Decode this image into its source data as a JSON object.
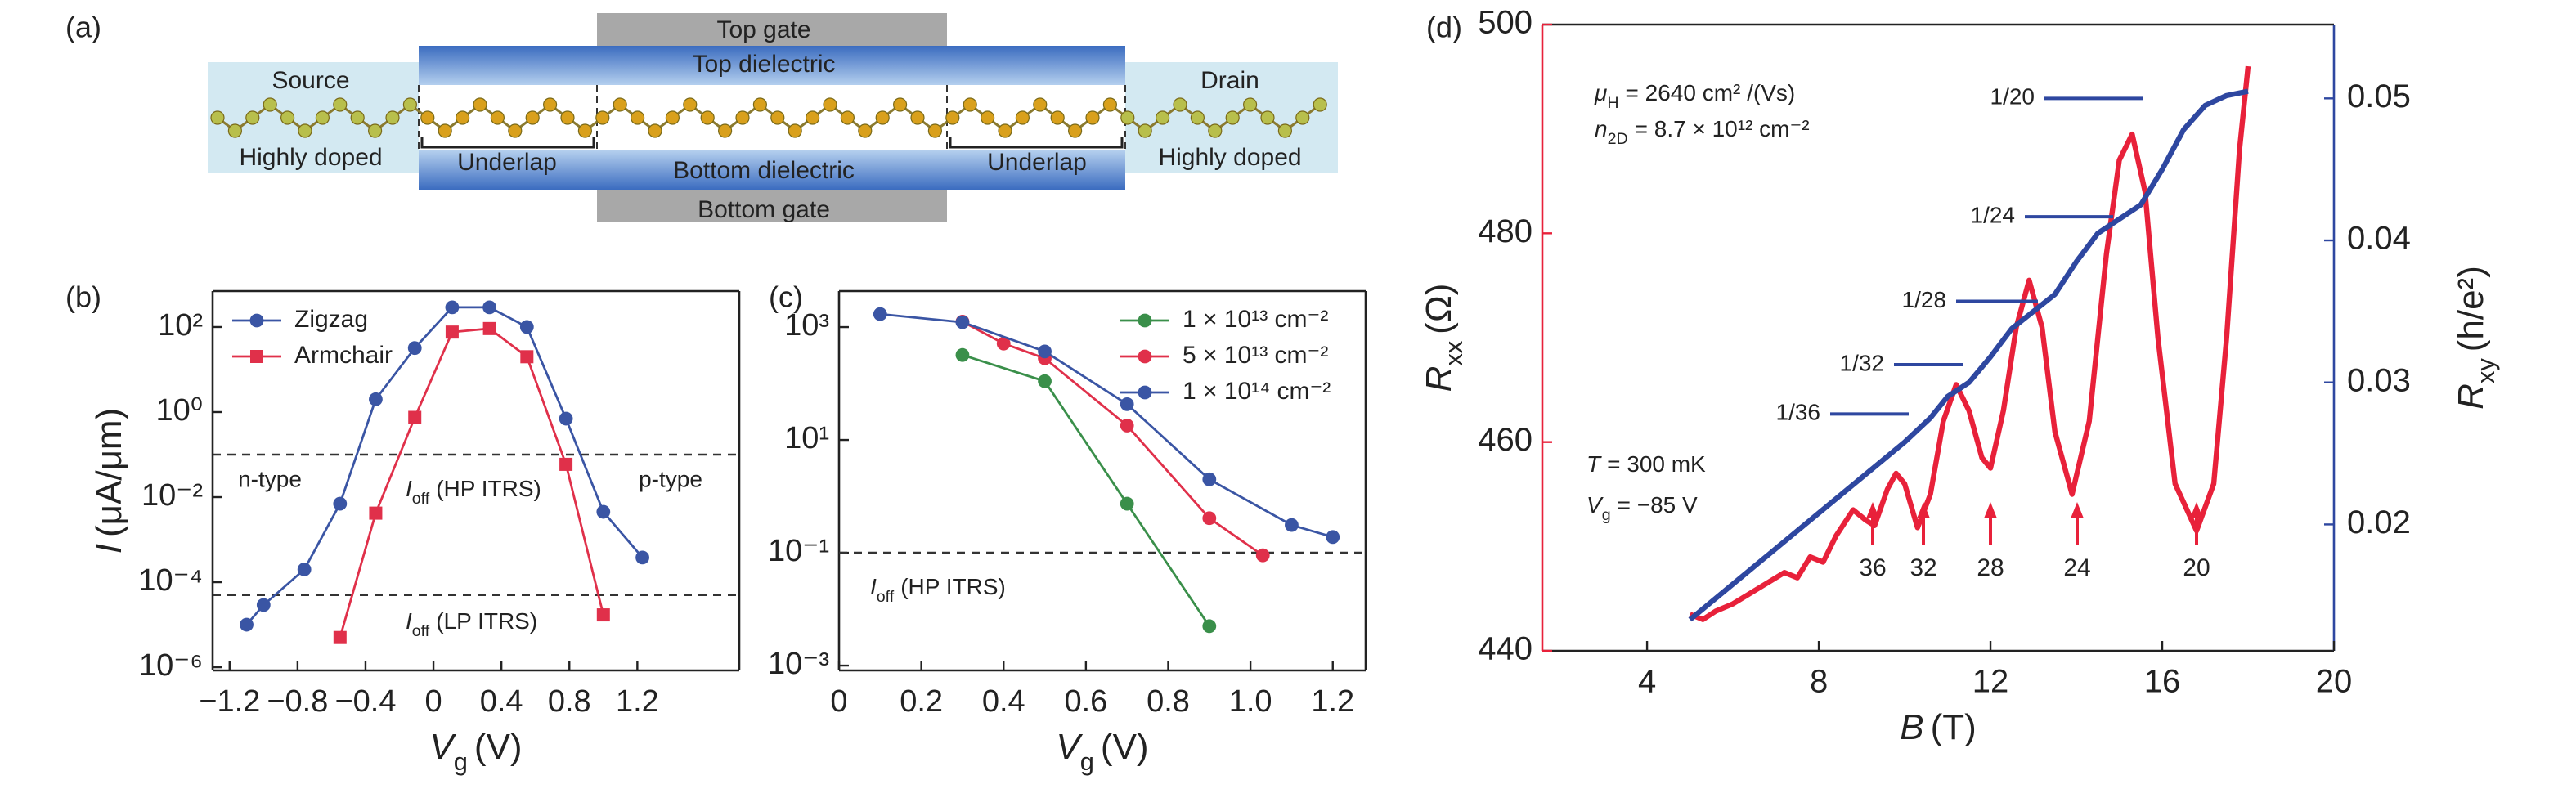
{
  "diagram": {
    "panel_label": "(a)",
    "source": "Source",
    "drain": "Drain",
    "source_doping": "Highly doped",
    "drain_doping": "Highly doped",
    "top_gate": "Top gate",
    "bottom_gate": "Bottom gate",
    "top_dielectric": "Top dielectric",
    "bottom_dielectric": "Bottom dielectric",
    "underlap_left": "Underlap",
    "underlap_right": "Underlap"
  },
  "chart_data": [
    {
      "type": "line",
      "panel_label": "(b)",
      "xlabel": {
        "symbol": "V",
        "subscript": "g",
        "unit": "(V)"
      },
      "ylabel": {
        "symbol": "I",
        "unit": "(μA/μm)"
      },
      "xlim": [
        -1.3,
        1.8
      ],
      "xticks": [
        {
          "value": -1.2,
          "label": "−1.2"
        },
        {
          "value": -0.8,
          "label": "−0.8"
        },
        {
          "value": -0.4,
          "label": "−0.4"
        },
        0,
        0.4,
        0.8,
        1.2
      ],
      "ylim": [
        8.4e-07,
        700
      ],
      "ylog": true,
      "yticks": [
        {
          "value": 100,
          "label": "10²"
        },
        {
          "value": 1,
          "label": "10⁰"
        },
        {
          "value": 0.01,
          "label": "10⁻²"
        },
        {
          "value": 0.0001,
          "label": "10⁻⁴"
        },
        {
          "value": 1e-06,
          "label": "10⁻⁶"
        }
      ],
      "legend": "upper left",
      "series": [
        {
          "name": "Zigzag",
          "color": "#3a55a4",
          "marker": "circle",
          "x": [
            -1.1,
            -1.0,
            -0.76,
            -0.55,
            -0.34,
            -0.11,
            0.11,
            0.33,
            0.55,
            0.78,
            1.0,
            1.23
          ],
          "values": [
            1e-05,
            2.9e-05,
            0.0002,
            0.007,
            2,
            32,
            290,
            290,
            100,
            0.7,
            0.0045,
            0.00038
          ]
        },
        {
          "name": "Armchair",
          "color": "#e0304a",
          "marker": "square",
          "x": [
            -0.55,
            -0.34,
            -0.11,
            0.11,
            0.33,
            0.55,
            0.78,
            1.0
          ],
          "values": [
            5e-06,
            0.0042,
            0.75,
            76,
            92,
            20,
            0.059,
            1.7e-05
          ]
        }
      ],
      "hlines": [
        0.1,
        5e-05
      ],
      "annotations": [
        "n-type",
        "p-type",
        {
          "symbol": "I",
          "subscript": "off",
          "text": "(HP ITRS)"
        },
        {
          "symbol": "I",
          "subscript": "off",
          "text": "(LP ITRS)"
        }
      ]
    },
    {
      "type": "line",
      "panel_label": "(c)",
      "xlabel": {
        "symbol": "V",
        "subscript": "g",
        "unit": "(V)"
      },
      "xlim": [
        0,
        1.28
      ],
      "xticks": [
        0,
        0.2,
        0.4,
        0.6,
        0.8,
        {
          "value": 1,
          "label": "1.0"
        },
        1.2
      ],
      "ylim": [
        0.00082,
        4350
      ],
      "ylog": true,
      "yticks": [
        {
          "value": 1000,
          "label": "10³"
        },
        {
          "value": 10,
          "label": "10¹"
        },
        {
          "value": 0.1,
          "label": "10⁻¹"
        },
        {
          "value": 0.001,
          "label": "10⁻³"
        }
      ],
      "legend": "upper right",
      "series": [
        {
          "name": "1 × 10¹³ cm⁻²",
          "color": "#3a8f4a",
          "marker": "circle",
          "x": [
            0.3,
            0.5,
            0.7,
            0.9
          ],
          "values": [
            320,
            110,
            0.74,
            0.005
          ]
        },
        {
          "name": "5 × 10¹³ cm⁻²",
          "color": "#e0304a",
          "marker": "circle",
          "x": [
            0.3,
            0.4,
            0.5,
            0.7,
            0.9,
            1.03
          ],
          "values": [
            1250,
            510,
            280,
            18,
            0.41,
            0.09
          ]
        },
        {
          "name": "1 × 10¹⁴ cm⁻²",
          "color": "#3a55a4",
          "marker": "circle",
          "x": [
            0.1,
            0.3,
            0.5,
            0.7,
            0.9,
            1.1,
            1.2
          ],
          "values": [
            1700,
            1220,
            370,
            43,
            2,
            0.31,
            0.19
          ]
        }
      ],
      "hlines": [
        0.1
      ],
      "annotations": [
        {
          "symbol": "I",
          "subscript": "off",
          "text": "(HP ITRS)"
        }
      ]
    },
    {
      "type": "line",
      "panel_label": "(d)",
      "xlabel": {
        "symbol": "B",
        "unit": "(T)"
      },
      "ylabel": {
        "symbol": "R",
        "subscript": "xx",
        "unit": "(Ω)"
      },
      "y2label": {
        "symbol": "R",
        "subscript": "xy",
        "unit": "(h/e²)"
      },
      "xlim": [
        1.56,
        20
      ],
      "xticks": [
        4,
        8,
        12,
        16,
        20
      ],
      "ylim": [
        440,
        500
      ],
      "yticks": [
        440,
        460,
        480,
        500
      ],
      "ycolor": "#e8213a",
      "y2lim": [
        0.0111,
        0.0552
      ],
      "y2ticks": [
        0.02,
        0.03,
        0.04,
        0.05
      ],
      "y2color": "#2e47a0",
      "series": [
        {
          "color": "#e8213a",
          "marker": "none",
          "x": [
            5.0,
            5.3,
            5.6,
            6.0,
            6.4,
            6.8,
            7.2,
            7.5,
            7.8,
            8.1,
            8.4,
            8.8,
            9.1,
            9.3,
            9.6,
            9.8,
            10.0,
            10.3,
            10.6,
            10.9,
            11.2,
            11.5,
            11.8,
            12.0,
            12.3,
            12.6,
            12.9,
            13.2,
            13.5,
            13.9,
            14.3,
            14.7,
            15.0,
            15.3,
            15.6,
            15.9,
            16.3,
            16.8,
            17.2,
            17.5,
            17.8,
            18.0
          ],
          "values": [
            443.5,
            443.0,
            443.8,
            444.5,
            445.5,
            446.5,
            447.5,
            447.0,
            449.0,
            448.5,
            451.0,
            453.5,
            452.5,
            452.0,
            455.5,
            457.0,
            456.0,
            451.8,
            455.0,
            462.0,
            465.5,
            463.0,
            458.5,
            457.5,
            463.0,
            471.0,
            475.5,
            471.0,
            461.0,
            455.0,
            462.0,
            478.0,
            487.0,
            489.5,
            484.0,
            470.0,
            456.0,
            451.5,
            456.0,
            470.0,
            488.0,
            496.0
          ]
        },
        {
          "color": "#2e47a0",
          "marker": "none",
          "axis": "y2",
          "x": [
            5.0,
            6.0,
            7.0,
            8.0,
            9.0,
            10.0,
            10.6,
            11.0,
            11.5,
            12.0,
            12.5,
            13.0,
            13.5,
            14.0,
            14.5,
            15.0,
            15.5,
            16.0,
            16.5,
            17.0,
            17.5,
            18.0
          ],
          "values": [
            0.0133,
            0.0158,
            0.0183,
            0.0208,
            0.0233,
            0.0258,
            0.0275,
            0.029,
            0.03,
            0.0318,
            0.0338,
            0.035,
            0.0362,
            0.0385,
            0.0405,
            0.0415,
            0.0425,
            0.045,
            0.0478,
            0.0495,
            0.0502,
            0.0505
          ]
        }
      ],
      "plateaus": [
        "1/20",
        "1/24",
        "1/28",
        "1/32",
        "1/36"
      ],
      "minima_labels": [
        36,
        32,
        28,
        24,
        20
      ],
      "annotations": [
        {
          "symbol": "μ",
          "subscript": "H",
          "text": "= 2640 cm² /(Vs)"
        },
        {
          "symbol": "n",
          "subscript": "2D",
          "text": "= 8.7 × 10¹² cm⁻²"
        },
        {
          "symbol": "T",
          "text": "= 300 mK"
        },
        {
          "symbol": "V",
          "subscript": "g",
          "text": "= −85 V"
        }
      ]
    }
  ]
}
